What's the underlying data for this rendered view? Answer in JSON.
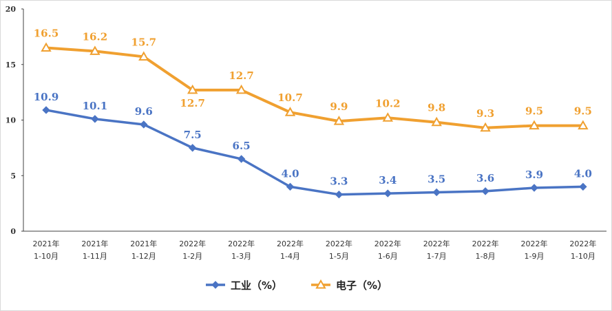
{
  "chart_data": {
    "type": "line",
    "categories": [
      [
        "2021年",
        "1-10月"
      ],
      [
        "2021年",
        "1-11月"
      ],
      [
        "2021年",
        "1-12月"
      ],
      [
        "2022年",
        "1-2月"
      ],
      [
        "2022年",
        "1-3月"
      ],
      [
        "2022年",
        "1-4月"
      ],
      [
        "2022年",
        "1-5月"
      ],
      [
        "2022年",
        "1-6月"
      ],
      [
        "2022年",
        "1-7月"
      ],
      [
        "2022年",
        "1-8月"
      ],
      [
        "2022年",
        "1-9月"
      ],
      [
        "2022年",
        "1-10月"
      ]
    ],
    "series": [
      {
        "name": "工业（%）",
        "color": "#4a74c4",
        "marker": "diamond",
        "values": [
          10.9,
          10.1,
          9.6,
          7.5,
          6.5,
          4.0,
          3.3,
          3.4,
          3.5,
          3.6,
          3.9,
          4.0
        ],
        "labels": [
          "10.9",
          "10.1",
          "9.6",
          "7.5",
          "6.5",
          "4.0",
          "3.3",
          "3.4",
          "3.5",
          "3.6",
          "3.9",
          "4.0"
        ]
      },
      {
        "name": "电子（%）",
        "color": "#f0a030",
        "marker": "triangle",
        "values": [
          16.5,
          16.2,
          15.7,
          12.7,
          12.7,
          10.7,
          9.9,
          10.2,
          9.8,
          9.3,
          9.5,
          9.5
        ],
        "labels": [
          "16.5",
          "16.2",
          "15.7",
          "12.7",
          "12.7",
          "10.7",
          "9.9",
          "10.2",
          "9.8",
          "9.3",
          "9.5",
          "9.5"
        ]
      }
    ],
    "ylim": [
      0,
      20
    ],
    "yticks": [
      0,
      5,
      10,
      15,
      20
    ],
    "ytick_labels": [
      "0",
      "5",
      "10",
      "15",
      "20"
    ],
    "legend_position": "bottom",
    "grid": false
  }
}
